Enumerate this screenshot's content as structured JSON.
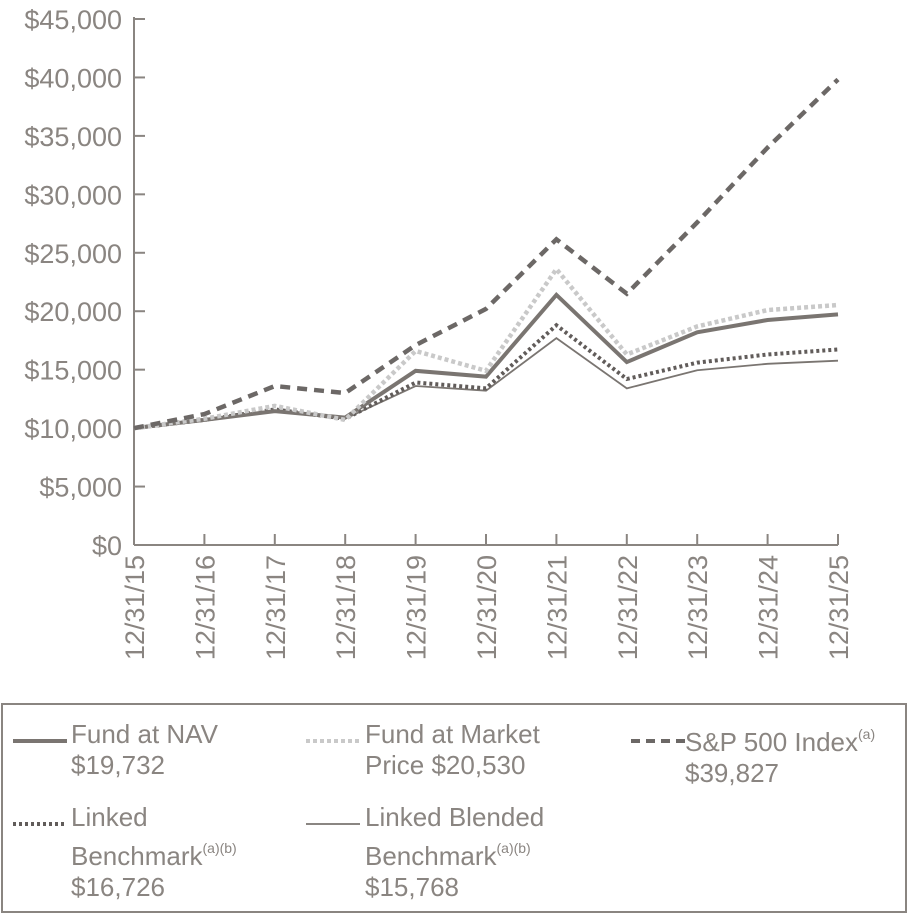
{
  "chart_data": {
    "type": "line",
    "title": "",
    "xlabel": "",
    "ylabel": "",
    "ylim": [
      0,
      45000
    ],
    "grid": false,
    "x": [
      "12/31/15",
      "12/31/16",
      "12/31/17",
      "12/31/18",
      "12/31/19",
      "12/31/20",
      "12/31/21",
      "12/31/22",
      "12/31/23",
      "12/31/24",
      "12/31/25"
    ],
    "yticks": [
      0,
      5000,
      10000,
      15000,
      20000,
      25000,
      30000,
      35000,
      40000,
      45000
    ],
    "ytick_labels": [
      "$0",
      "$5,000",
      "$10,000",
      "$15,000",
      "$20,000",
      "$25,000",
      "$30,000",
      "$35,000",
      "$40,000",
      "$45,000"
    ],
    "legend_placement": "bottom",
    "series": [
      {
        "name": "Fund at NAV",
        "final": "$19,732",
        "color": "#7a7571",
        "style": "solid-thick",
        "values": [
          10000,
          10700,
          11450,
          10900,
          14900,
          14400,
          21400,
          15650,
          18200,
          19250,
          19732
        ]
      },
      {
        "name": "Fund at Market Price",
        "final": "$20,530",
        "color": "#c9c9c9",
        "style": "dotted",
        "values": [
          10000,
          10800,
          11900,
          10700,
          16600,
          14900,
          23600,
          16300,
          18700,
          20100,
          20530
        ]
      },
      {
        "name": "S&P 500 Index",
        "final": "$39,827",
        "color": "#6c6866",
        "style": "dashed",
        "values": [
          10000,
          11200,
          13600,
          13000,
          17100,
          20200,
          26150,
          21500,
          27600,
          34000,
          39827
        ]
      },
      {
        "name": "Linked Benchmark",
        "final": "$16,726",
        "color": "#615c5a",
        "style": "dotted-dark",
        "values": [
          10000,
          10700,
          11600,
          10800,
          13900,
          13400,
          18800,
          14200,
          15600,
          16300,
          16726
        ]
      },
      {
        "name": "Linked Blended Benchmark",
        "final": "$15,768",
        "color": "#7a7571",
        "style": "solid-thin",
        "values": [
          10000,
          10700,
          11400,
          10800,
          13600,
          13200,
          17700,
          13400,
          14950,
          15500,
          15768
        ]
      }
    ]
  },
  "legend": {
    "nav": {
      "line1": "Fund at NAV",
      "line2": "$19,732"
    },
    "market": {
      "line1": "Fund at Market",
      "line2": "Price $20,530"
    },
    "sp": {
      "line1": "S&P 500 Index",
      "sup": "(a)",
      "line2": "$39,827"
    },
    "linked": {
      "line1": "Linked",
      "line2": "Benchmark",
      "sup": "(a)(b)",
      "line3": "$16,726"
    },
    "blended": {
      "line1": "Linked Blended",
      "line2": "Benchmark",
      "sup": "(a)(b)",
      "line3": "$15,768"
    }
  }
}
